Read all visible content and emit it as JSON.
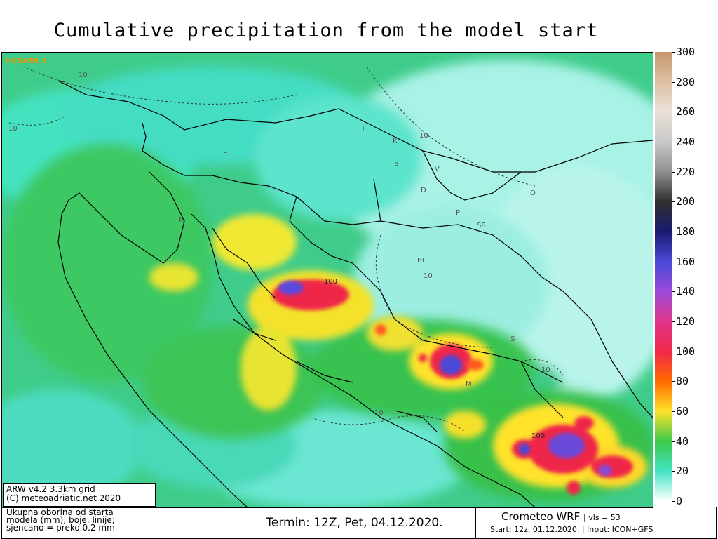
{
  "title": "Cumulative precipitation from the model start",
  "watermark": "FUSION 3",
  "credit": {
    "line1": "ARW v4.2 3.3km grid",
    "line2": "(C) meteoadriatic.net 2020"
  },
  "footer": {
    "legend_line1": "Ukupna oborina od starta",
    "legend_line2": "modela (mm); boje, linije;",
    "legend_line3": "sjencano = preko 0.2 mm",
    "termin": "Termin: 12Z, Pet, 04.12.2020.",
    "model": "Crometeo WRF",
    "vls": "| vls = 53",
    "start": "Start: 12z, 01.12.2020.",
    "input": "| Input: ICON+GFS"
  },
  "colorbar": {
    "ticks": [
      "300",
      "280",
      "260",
      "240",
      "220",
      "200",
      "180",
      "160",
      "140",
      "120",
      "100",
      "80",
      "60",
      "40",
      "20",
      "0"
    ],
    "colors": [
      "#c6966a",
      "#dcc0a4",
      "#ebe2d8",
      "#c8c8c8",
      "#909090",
      "#303030",
      "#1a1a70",
      "#4a4ad8",
      "#9a4ad8",
      "#e0358a",
      "#f02848",
      "#ff6a00",
      "#ffe22a",
      "#3cc84a",
      "#44e4c4",
      "#ffffff"
    ]
  },
  "map_labels": [
    "10",
    "10",
    "10",
    "10",
    "10",
    "10",
    "100",
    "100",
    "BL",
    "SR",
    "P",
    "D",
    "K",
    "B",
    "V",
    "O",
    "S",
    "M",
    "L",
    "T",
    "R"
  ]
}
